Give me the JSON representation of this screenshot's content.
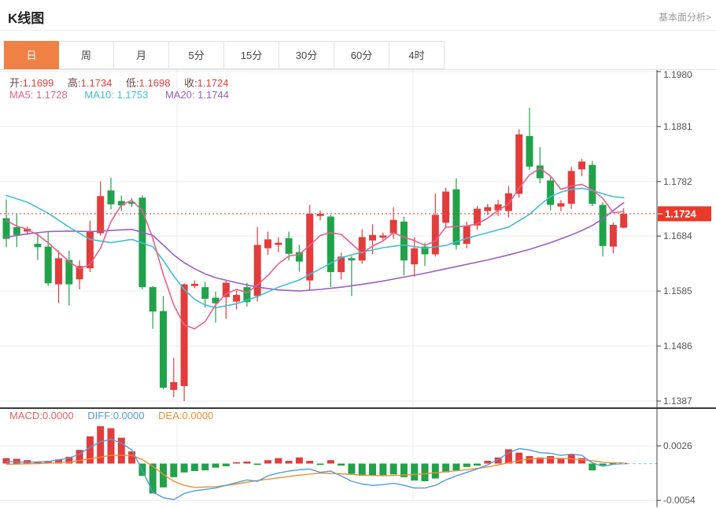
{
  "header": {
    "title": "K线图",
    "link": "基本面分析>"
  },
  "tabs": {
    "items": [
      "日",
      "周",
      "月",
      "5分",
      "15分",
      "30分",
      "60分",
      "4时"
    ],
    "selected": "日"
  },
  "ohlc_bar": {
    "open_label": "开:",
    "open": "1.1699",
    "high_label": "高:",
    "high": "1.1734",
    "low_label": "低:",
    "low": "1.1698",
    "close_label": "收:",
    "close": "1.1724"
  },
  "ma_bar": {
    "ma5_label": "MA5:",
    "ma5": "1.1728",
    "ma10_label": "MA10:",
    "ma10": "1.1753",
    "ma20_label": "MA20:",
    "ma20": "1.1744"
  },
  "macd_bar": {
    "macd_label": "MACD:",
    "macd": "0.0000",
    "diff_label": "DIFF:",
    "diff": "0.0000",
    "dea_label": "DEA:",
    "dea": "0.0000"
  },
  "colors": {
    "up": "#e23c3c",
    "down": "#21a24a",
    "ma5": "#e7608d",
    "ma10": "#3fc0d4",
    "ma20": "#9b5fc0",
    "diff": "#549bd8",
    "dea": "#ee8f33",
    "grid": "#ececec",
    "axis": "#3c3c3c",
    "axis_text": "#555",
    "last_price": "#e8392a",
    "tab_accent": "#ef8145",
    "zero_dash": "#8fd8ea",
    "panel_divider": "#3a3a3a"
  },
  "chart_data": {
    "type": "candlestick_with_macd",
    "title": "K线图 (daily K-line with MA5/MA10/MA20 and MACD)",
    "legend_position": "top-left overlay",
    "grid": true,
    "price_axis": {
      "side": "right",
      "ticks": [
        1.198,
        1.1881,
        1.1782,
        1.1684,
        1.1585,
        1.1486,
        1.1387
      ],
      "range": [
        1.1387,
        1.198
      ],
      "last_price": 1.1724,
      "last_price_label": "1.1724"
    },
    "macd_axis": {
      "side": "right",
      "ticks": [
        0.0026,
        -0.0054
      ],
      "range": [
        -0.0054,
        0.0026
      ]
    },
    "candles_ohlc": [
      [
        1.1716,
        1.175,
        1.1664,
        1.1679
      ],
      [
        1.17,
        1.1724,
        1.1664,
        1.1686
      ],
      [
        1.1692,
        1.1701,
        1.1686,
        1.1697
      ],
      [
        1.167,
        1.1689,
        1.1641,
        1.1664
      ],
      [
        1.1665,
        1.1693,
        1.1594,
        1.1599
      ],
      [
        1.1597,
        1.1658,
        1.1563,
        1.1644
      ],
      [
        1.1641,
        1.1658,
        1.1559,
        1.1597
      ],
      [
        1.1606,
        1.164,
        1.1588,
        1.163
      ],
      [
        1.1626,
        1.1712,
        1.1619,
        1.1693
      ],
      [
        1.1689,
        1.1782,
        1.1685,
        1.1756
      ],
      [
        1.1766,
        1.1789,
        1.1732,
        1.1741
      ],
      [
        1.1747,
        1.1757,
        1.1729,
        1.1739
      ],
      [
        1.1745,
        1.1752,
        1.1736,
        1.1742
      ],
      [
        1.1753,
        1.1757,
        1.1588,
        1.1592
      ],
      [
        1.1592,
        1.1594,
        1.1517,
        1.1548
      ],
      [
        1.1549,
        1.1576,
        1.1408,
        1.1411
      ],
      [
        1.1407,
        1.1465,
        1.1394,
        1.1421
      ],
      [
        1.1414,
        1.1599,
        1.1387,
        1.1597
      ],
      [
        1.1594,
        1.1604,
        1.159,
        1.1598
      ],
      [
        1.1592,
        1.1602,
        1.1555,
        1.1571
      ],
      [
        1.1573,
        1.1584,
        1.1528,
        1.1563
      ],
      [
        1.1574,
        1.1604,
        1.1535,
        1.16
      ],
      [
        1.1566,
        1.1586,
        1.1552,
        1.1578
      ],
      [
        1.1592,
        1.16,
        1.1557,
        1.1565
      ],
      [
        1.1576,
        1.17,
        1.1566,
        1.1668
      ],
      [
        1.1662,
        1.1692,
        1.165,
        1.1678
      ],
      [
        1.1668,
        1.1682,
        1.1655,
        1.1672
      ],
      [
        1.168,
        1.1692,
        1.164,
        1.1652
      ],
      [
        1.1655,
        1.1668,
        1.162,
        1.1638
      ],
      [
        1.1604,
        1.174,
        1.1586,
        1.1724
      ],
      [
        1.172,
        1.173,
        1.1712,
        1.1724
      ],
      [
        1.1719,
        1.1722,
        1.1592,
        1.1619
      ],
      [
        1.1619,
        1.1654,
        1.1606,
        1.1647
      ],
      [
        1.1644,
        1.1648,
        1.1576,
        1.164
      ],
      [
        1.164,
        1.1696,
        1.1634,
        1.1682
      ],
      [
        1.1676,
        1.1705,
        1.1651,
        1.1686
      ],
      [
        1.1681,
        1.169,
        1.1676,
        1.1685
      ],
      [
        1.1689,
        1.1736,
        1.1679,
        1.1713
      ],
      [
        1.171,
        1.1719,
        1.1613,
        1.164
      ],
      [
        1.1633,
        1.1682,
        1.1611,
        1.1662
      ],
      [
        1.1665,
        1.1672,
        1.163,
        1.1651
      ],
      [
        1.1651,
        1.176,
        1.1647,
        1.1722
      ],
      [
        1.1708,
        1.1771,
        1.1698,
        1.1764
      ],
      [
        1.1768,
        1.1788,
        1.166,
        1.1668
      ],
      [
        1.167,
        1.171,
        1.1662,
        1.1703
      ],
      [
        1.1703,
        1.1738,
        1.1695,
        1.1733
      ],
      [
        1.1729,
        1.1742,
        1.1722,
        1.1736
      ],
      [
        1.173,
        1.1749,
        1.172,
        1.1741
      ],
      [
        1.1729,
        1.1774,
        1.1717,
        1.1761
      ],
      [
        1.176,
        1.1876,
        1.1753,
        1.1867
      ],
      [
        1.1864,
        1.1915,
        1.1803,
        1.1809
      ],
      [
        1.1811,
        1.1844,
        1.1779,
        1.1788
      ],
      [
        1.1784,
        1.179,
        1.173,
        1.174
      ],
      [
        1.1737,
        1.1749,
        1.1729,
        1.1743
      ],
      [
        1.1742,
        1.1808,
        1.1733,
        1.1801
      ],
      [
        1.1804,
        1.1823,
        1.1792,
        1.1818
      ],
      [
        1.1812,
        1.1819,
        1.1738,
        1.1742
      ],
      [
        1.174,
        1.1745,
        1.1647,
        1.1666
      ],
      [
        1.1665,
        1.1708,
        1.1653,
        1.1704
      ],
      [
        1.1699,
        1.1734,
        1.1698,
        1.1724
      ]
    ],
    "ma5_line": [
      [
        0,
        1.1712
      ],
      [
        1,
        1.1702
      ],
      [
        2,
        1.1696
      ],
      [
        3,
        1.1686
      ],
      [
        4,
        1.1672
      ],
      [
        5,
        1.1655
      ],
      [
        6,
        1.1638
      ],
      [
        7,
        1.1625
      ],
      [
        8,
        1.1633
      ],
      [
        9,
        1.1662
      ],
      [
        10,
        1.171
      ],
      [
        11,
        1.174
      ],
      [
        12,
        1.1748
      ],
      [
        13,
        1.173
      ],
      [
        14,
        1.168
      ],
      [
        15,
        1.1615
      ],
      [
        16,
        1.156
      ],
      [
        17,
        1.1524
      ],
      [
        18,
        1.1517
      ],
      [
        19,
        1.153
      ],
      [
        20,
        1.156
      ],
      [
        21,
        1.158
      ],
      [
        22,
        1.1588
      ],
      [
        23,
        1.1582
      ],
      [
        24,
        1.1596
      ],
      [
        25,
        1.1613
      ],
      [
        26,
        1.1634
      ],
      [
        27,
        1.1648
      ],
      [
        28,
        1.1651
      ],
      [
        29,
        1.1667
      ],
      [
        30,
        1.1685
      ],
      [
        31,
        1.169
      ],
      [
        32,
        1.1687
      ],
      [
        33,
        1.167
      ],
      [
        34,
        1.1653
      ],
      [
        35,
        1.1666
      ],
      [
        36,
        1.1675
      ],
      [
        37,
        1.169
      ],
      [
        38,
        1.1682
      ],
      [
        39,
        1.1676
      ],
      [
        40,
        1.1667
      ],
      [
        41,
        1.1675
      ],
      [
        42,
        1.17
      ],
      [
        43,
        1.1701
      ],
      [
        44,
        1.1702
      ],
      [
        45,
        1.1706
      ],
      [
        46,
        1.1716
      ],
      [
        47,
        1.173
      ],
      [
        48,
        1.1742
      ],
      [
        49,
        1.177
      ],
      [
        50,
        1.1794
      ],
      [
        51,
        1.1806
      ],
      [
        52,
        1.1792
      ],
      [
        53,
        1.1768
      ],
      [
        54,
        1.1774
      ],
      [
        55,
        1.1777
      ],
      [
        56,
        1.1767
      ],
      [
        57,
        1.1752
      ],
      [
        58,
        1.1726
      ],
      [
        59,
        1.1728
      ]
    ],
    "ma10_line": [
      [
        0,
        1.1757
      ],
      [
        2,
        1.1745
      ],
      [
        4,
        1.1725
      ],
      [
        6,
        1.17
      ],
      [
        8,
        1.1678
      ],
      [
        10,
        1.1672
      ],
      [
        12,
        1.1678
      ],
      [
        14,
        1.1665
      ],
      [
        15,
        1.164
      ],
      [
        16,
        1.1612
      ],
      [
        17,
        1.1588
      ],
      [
        18,
        1.157
      ],
      [
        19,
        1.156
      ],
      [
        20,
        1.1555
      ],
      [
        22,
        1.1562
      ],
      [
        24,
        1.1575
      ],
      [
        26,
        1.1592
      ],
      [
        28,
        1.1605
      ],
      [
        30,
        1.1625
      ],
      [
        32,
        1.1645
      ],
      [
        34,
        1.1655
      ],
      [
        36,
        1.1663
      ],
      [
        38,
        1.1668
      ],
      [
        40,
        1.1662
      ],
      [
        42,
        1.1667
      ],
      [
        44,
        1.168
      ],
      [
        46,
        1.169
      ],
      [
        48,
        1.17
      ],
      [
        50,
        1.1723
      ],
      [
        51,
        1.174
      ],
      [
        52,
        1.1755
      ],
      [
        53,
        1.1763
      ],
      [
        54,
        1.1768
      ],
      [
        55,
        1.177
      ],
      [
        56,
        1.1766
      ],
      [
        57,
        1.176
      ],
      [
        58,
        1.1755
      ],
      [
        59,
        1.1753
      ]
    ],
    "ma20_line": [
      [
        0,
        1.1682
      ],
      [
        2,
        1.1688
      ],
      [
        4,
        1.1692
      ],
      [
        6,
        1.1693
      ],
      [
        8,
        1.1692
      ],
      [
        10,
        1.1694
      ],
      [
        12,
        1.1696
      ],
      [
        14,
        1.1685
      ],
      [
        15,
        1.1668
      ],
      [
        16,
        1.165
      ],
      [
        17,
        1.1636
      ],
      [
        18,
        1.1625
      ],
      [
        19,
        1.1616
      ],
      [
        20,
        1.1609
      ],
      [
        22,
        1.16
      ],
      [
        24,
        1.1592
      ],
      [
        26,
        1.1587
      ],
      [
        28,
        1.1585
      ],
      [
        30,
        1.1588
      ],
      [
        32,
        1.1592
      ],
      [
        34,
        1.1597
      ],
      [
        36,
        1.1603
      ],
      [
        38,
        1.161
      ],
      [
        40,
        1.1617
      ],
      [
        42,
        1.1625
      ],
      [
        44,
        1.1633
      ],
      [
        46,
        1.1641
      ],
      [
        48,
        1.165
      ],
      [
        50,
        1.166
      ],
      [
        52,
        1.1672
      ],
      [
        54,
        1.1686
      ],
      [
        55,
        1.1694
      ],
      [
        56,
        1.1703
      ],
      [
        57,
        1.1715
      ],
      [
        58,
        1.173
      ],
      [
        59,
        1.1744
      ]
    ],
    "macd_hist": [
      0.0008,
      0.0007,
      0.0005,
      0.0003,
      0.0004,
      0.0006,
      0.001,
      0.002,
      0.004,
      0.0055,
      0.0052,
      0.0038,
      0.0018,
      -0.0018,
      -0.0044,
      -0.0035,
      -0.002,
      -0.0013,
      -0.0011,
      -0.001,
      -0.0006,
      -0.0004,
      0.0002,
      0.0003,
      -0.0002,
      0.0005,
      0.0008,
      0.0004,
      0.0009,
      0.0004,
      -0.0002,
      0.0005,
      -0.0003,
      -0.0015,
      -0.0018,
      -0.0018,
      -0.0017,
      -0.0016,
      -0.002,
      -0.0025,
      -0.0026,
      -0.0022,
      -0.0013,
      -0.001,
      -0.0005,
      -0.0003,
      0.0004,
      0.0009,
      0.0021,
      0.0016,
      0.0011,
      0.0009,
      0.0011,
      0.0008,
      0.0013,
      0.0008,
      -0.001,
      -0.0003,
      -0.0001,
      0.0
    ],
    "diff_line": [
      [
        0,
        0.0003
      ],
      [
        2,
        0.0002
      ],
      [
        4,
        0.0003
      ],
      [
        6,
        0.0008
      ],
      [
        7,
        0.0014
      ],
      [
        8,
        0.0024
      ],
      [
        9,
        0.0032
      ],
      [
        10,
        0.0036
      ],
      [
        11,
        0.003
      ],
      [
        12,
        0.002
      ],
      [
        13,
        -0.001
      ],
      [
        14,
        -0.0042
      ],
      [
        15,
        -0.005
      ],
      [
        16,
        -0.0053
      ],
      [
        17,
        -0.0044
      ],
      [
        18,
        -0.004
      ],
      [
        19,
        -0.0038
      ],
      [
        20,
        -0.0036
      ],
      [
        21,
        -0.0032
      ],
      [
        22,
        -0.0028
      ],
      [
        23,
        -0.0024
      ],
      [
        24,
        -0.0026
      ],
      [
        25,
        -0.0018
      ],
      [
        26,
        -0.0014
      ],
      [
        27,
        -0.0011
      ],
      [
        28,
        -0.0009
      ],
      [
        29,
        -0.0008
      ],
      [
        30,
        -0.0013
      ],
      [
        31,
        -0.0011
      ],
      [
        32,
        -0.0018
      ],
      [
        33,
        -0.0026
      ],
      [
        34,
        -0.003
      ],
      [
        35,
        -0.0032
      ],
      [
        36,
        -0.0031
      ],
      [
        37,
        -0.0029
      ],
      [
        38,
        -0.0032
      ],
      [
        39,
        -0.0036
      ],
      [
        40,
        -0.0036
      ],
      [
        41,
        -0.0032
      ],
      [
        42,
        -0.0024
      ],
      [
        43,
        -0.0018
      ],
      [
        44,
        -0.0013
      ],
      [
        45,
        -0.0008
      ],
      [
        46,
        -0.0002
      ],
      [
        47,
        0.0006
      ],
      [
        48,
        0.0016
      ],
      [
        49,
        0.0022
      ],
      [
        50,
        0.002
      ],
      [
        51,
        0.0016
      ],
      [
        52,
        0.0015
      ],
      [
        53,
        0.0012
      ],
      [
        54,
        0.0014
      ],
      [
        55,
        0.0012
      ],
      [
        56,
        0.0001
      ],
      [
        57,
        -0.0004
      ],
      [
        58,
        -0.0001
      ],
      [
        59,
        0.0
      ]
    ],
    "dea_line": [
      [
        0,
        -0.0001
      ],
      [
        3,
        0.0
      ],
      [
        6,
        0.0002
      ],
      [
        8,
        0.0007
      ],
      [
        10,
        0.0012
      ],
      [
        12,
        0.0012
      ],
      [
        13,
        0.0006
      ],
      [
        14,
        -0.0004
      ],
      [
        15,
        -0.0016
      ],
      [
        16,
        -0.0026
      ],
      [
        17,
        -0.0032
      ],
      [
        18,
        -0.0035
      ],
      [
        20,
        -0.0034
      ],
      [
        22,
        -0.003
      ],
      [
        24,
        -0.0025
      ],
      [
        26,
        -0.0021
      ],
      [
        28,
        -0.0017
      ],
      [
        30,
        -0.0014
      ],
      [
        32,
        -0.0015
      ],
      [
        34,
        -0.0017
      ],
      [
        36,
        -0.0018
      ],
      [
        38,
        -0.0017
      ],
      [
        40,
        -0.0015
      ],
      [
        42,
        -0.0012
      ],
      [
        44,
        -0.0009
      ],
      [
        46,
        -0.0005
      ],
      [
        48,
        0.0001
      ],
      [
        50,
        0.0007
      ],
      [
        52,
        0.0008
      ],
      [
        54,
        0.0007
      ],
      [
        56,
        0.0004
      ],
      [
        57,
        0.0002
      ],
      [
        58,
        0.0001
      ],
      [
        59,
        0.0001
      ]
    ]
  }
}
